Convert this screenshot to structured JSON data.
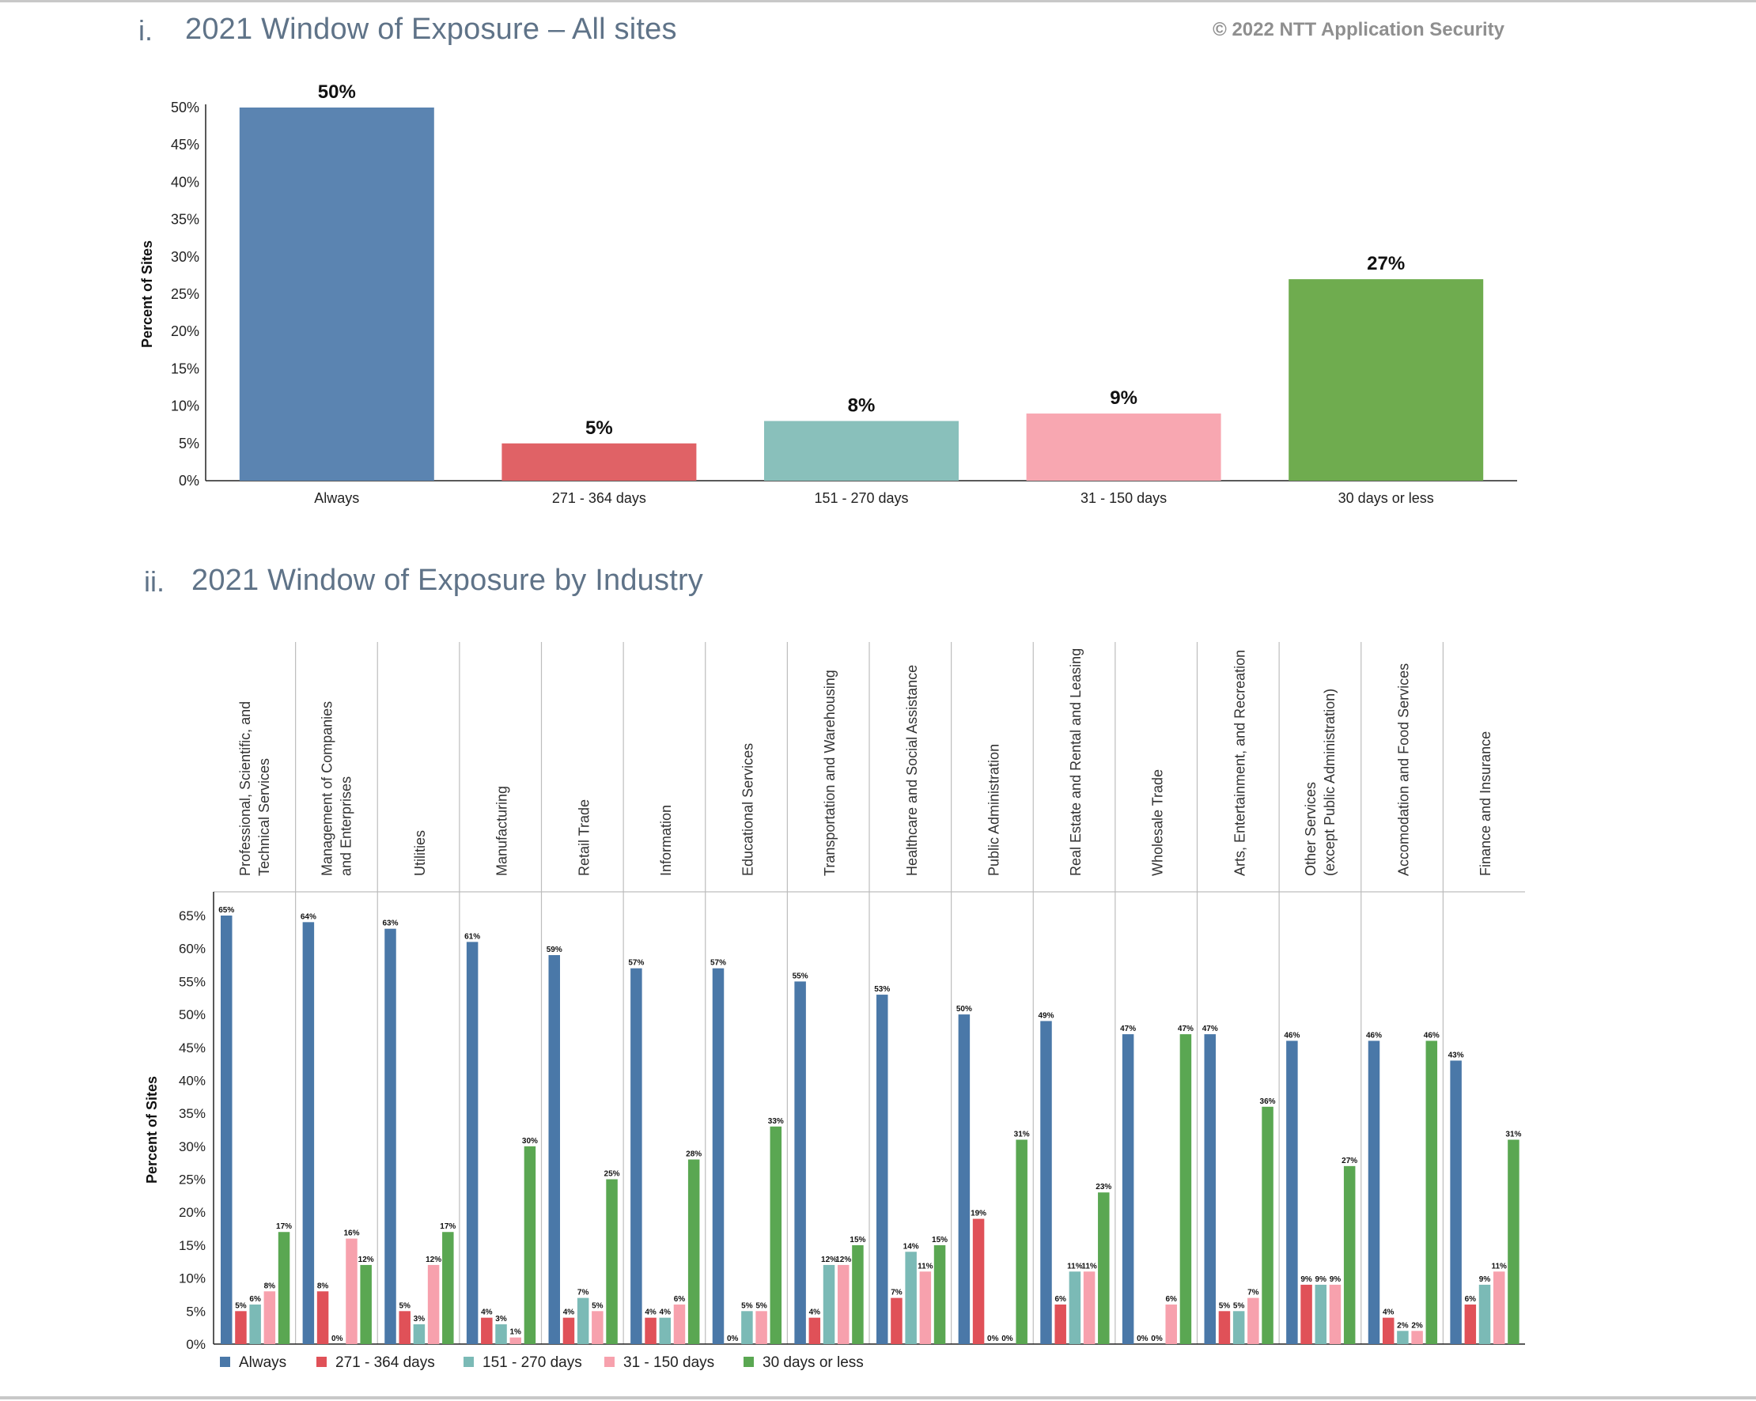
{
  "header": {
    "section1_num": "i.",
    "section1_title": "2021 Window of Exposure – All sites",
    "copyright": "© 2022 NTT Application Security",
    "section2_num": "ii.",
    "section2_title": "2021 Window of Exposure by Industry"
  },
  "colors": {
    "always": "#5b84b1",
    "d271": "#e06266",
    "d151": "#89c0bb",
    "d31": "#f8a7b1",
    "d30": "#6fac4f",
    "always_dark": "#4a78a8",
    "d271_dark": "#e05158",
    "d151_dark": "#7bbab6",
    "d31_dark": "#f7a1ad",
    "d30_dark": "#5aa752"
  },
  "chart_data": [
    {
      "type": "bar",
      "title": "2021 Window of Exposure – All sites",
      "categories": [
        "Always",
        "271 - 364 days",
        "151 - 270 days",
        "31 - 150 days",
        "30 days or less"
      ],
      "values": [
        50,
        5,
        8,
        9,
        27
      ],
      "value_labels": [
        "50%",
        "5%",
        "8%",
        "9%",
        "27%"
      ],
      "ylabel": "Percent of Sites",
      "ylim": [
        0,
        50
      ],
      "yticks": [
        "0%",
        "5%",
        "10%",
        "15%",
        "20%",
        "25%",
        "30%",
        "35%",
        "40%",
        "45%",
        "50%"
      ]
    },
    {
      "type": "bar",
      "title": "2021 Window of Exposure by Industry",
      "ylabel": "Percent of Sites",
      "ylim": [
        0,
        65
      ],
      "yticks": [
        "0%",
        "5%",
        "10%",
        "15%",
        "20%",
        "25%",
        "30%",
        "35%",
        "40%",
        "45%",
        "50%",
        "55%",
        "60%",
        "65%"
      ],
      "series_names": [
        "Always",
        "271 - 364 days",
        "151 - 270 days",
        "31 - 150 days",
        "30 days or less"
      ],
      "industries": [
        {
          "name": [
            "Professional, Scientific, and",
            "Technical Services"
          ],
          "values": [
            65,
            5,
            6,
            8,
            17
          ]
        },
        {
          "name": [
            "Management of Companies",
            "and Enterprises"
          ],
          "values": [
            64,
            8,
            0,
            16,
            12
          ]
        },
        {
          "name": [
            "Utilities"
          ],
          "values": [
            63,
            5,
            3,
            12,
            17
          ]
        },
        {
          "name": [
            "Manufacturing"
          ],
          "values": [
            61,
            4,
            3,
            1,
            30
          ]
        },
        {
          "name": [
            "Retail Trade"
          ],
          "values": [
            59,
            4,
            7,
            5,
            25
          ]
        },
        {
          "name": [
            "Information"
          ],
          "values": [
            57,
            4,
            4,
            6,
            28
          ]
        },
        {
          "name": [
            "Educational Services"
          ],
          "values": [
            57,
            0,
            5,
            5,
            33
          ]
        },
        {
          "name": [
            "Transportation and Warehousing"
          ],
          "values": [
            55,
            4,
            12,
            12,
            15
          ]
        },
        {
          "name": [
            "Healthcare and Social Assistance"
          ],
          "values": [
            53,
            7,
            14,
            11,
            15
          ]
        },
        {
          "name": [
            "Public Administration"
          ],
          "values": [
            50,
            19,
            0,
            0,
            31
          ]
        },
        {
          "name": [
            "Real Estate and Rental and Leasing"
          ],
          "values": [
            49,
            6,
            11,
            11,
            23
          ]
        },
        {
          "name": [
            "Wholesale Trade"
          ],
          "values": [
            47,
            0,
            0,
            6,
            47
          ]
        },
        {
          "name": [
            "Arts, Entertainment, and Recreation"
          ],
          "values": [
            47,
            5,
            5,
            7,
            36
          ]
        },
        {
          "name": [
            "Other Services",
            "(except Public Administration)"
          ],
          "values": [
            46,
            9,
            9,
            9,
            27
          ]
        },
        {
          "name": [
            "Accomodation and Food Services"
          ],
          "values": [
            46,
            4,
            2,
            2,
            46
          ]
        },
        {
          "name": [
            "Finance and Insurance"
          ],
          "values": [
            43,
            6,
            9,
            11,
            31
          ]
        }
      ]
    }
  ]
}
